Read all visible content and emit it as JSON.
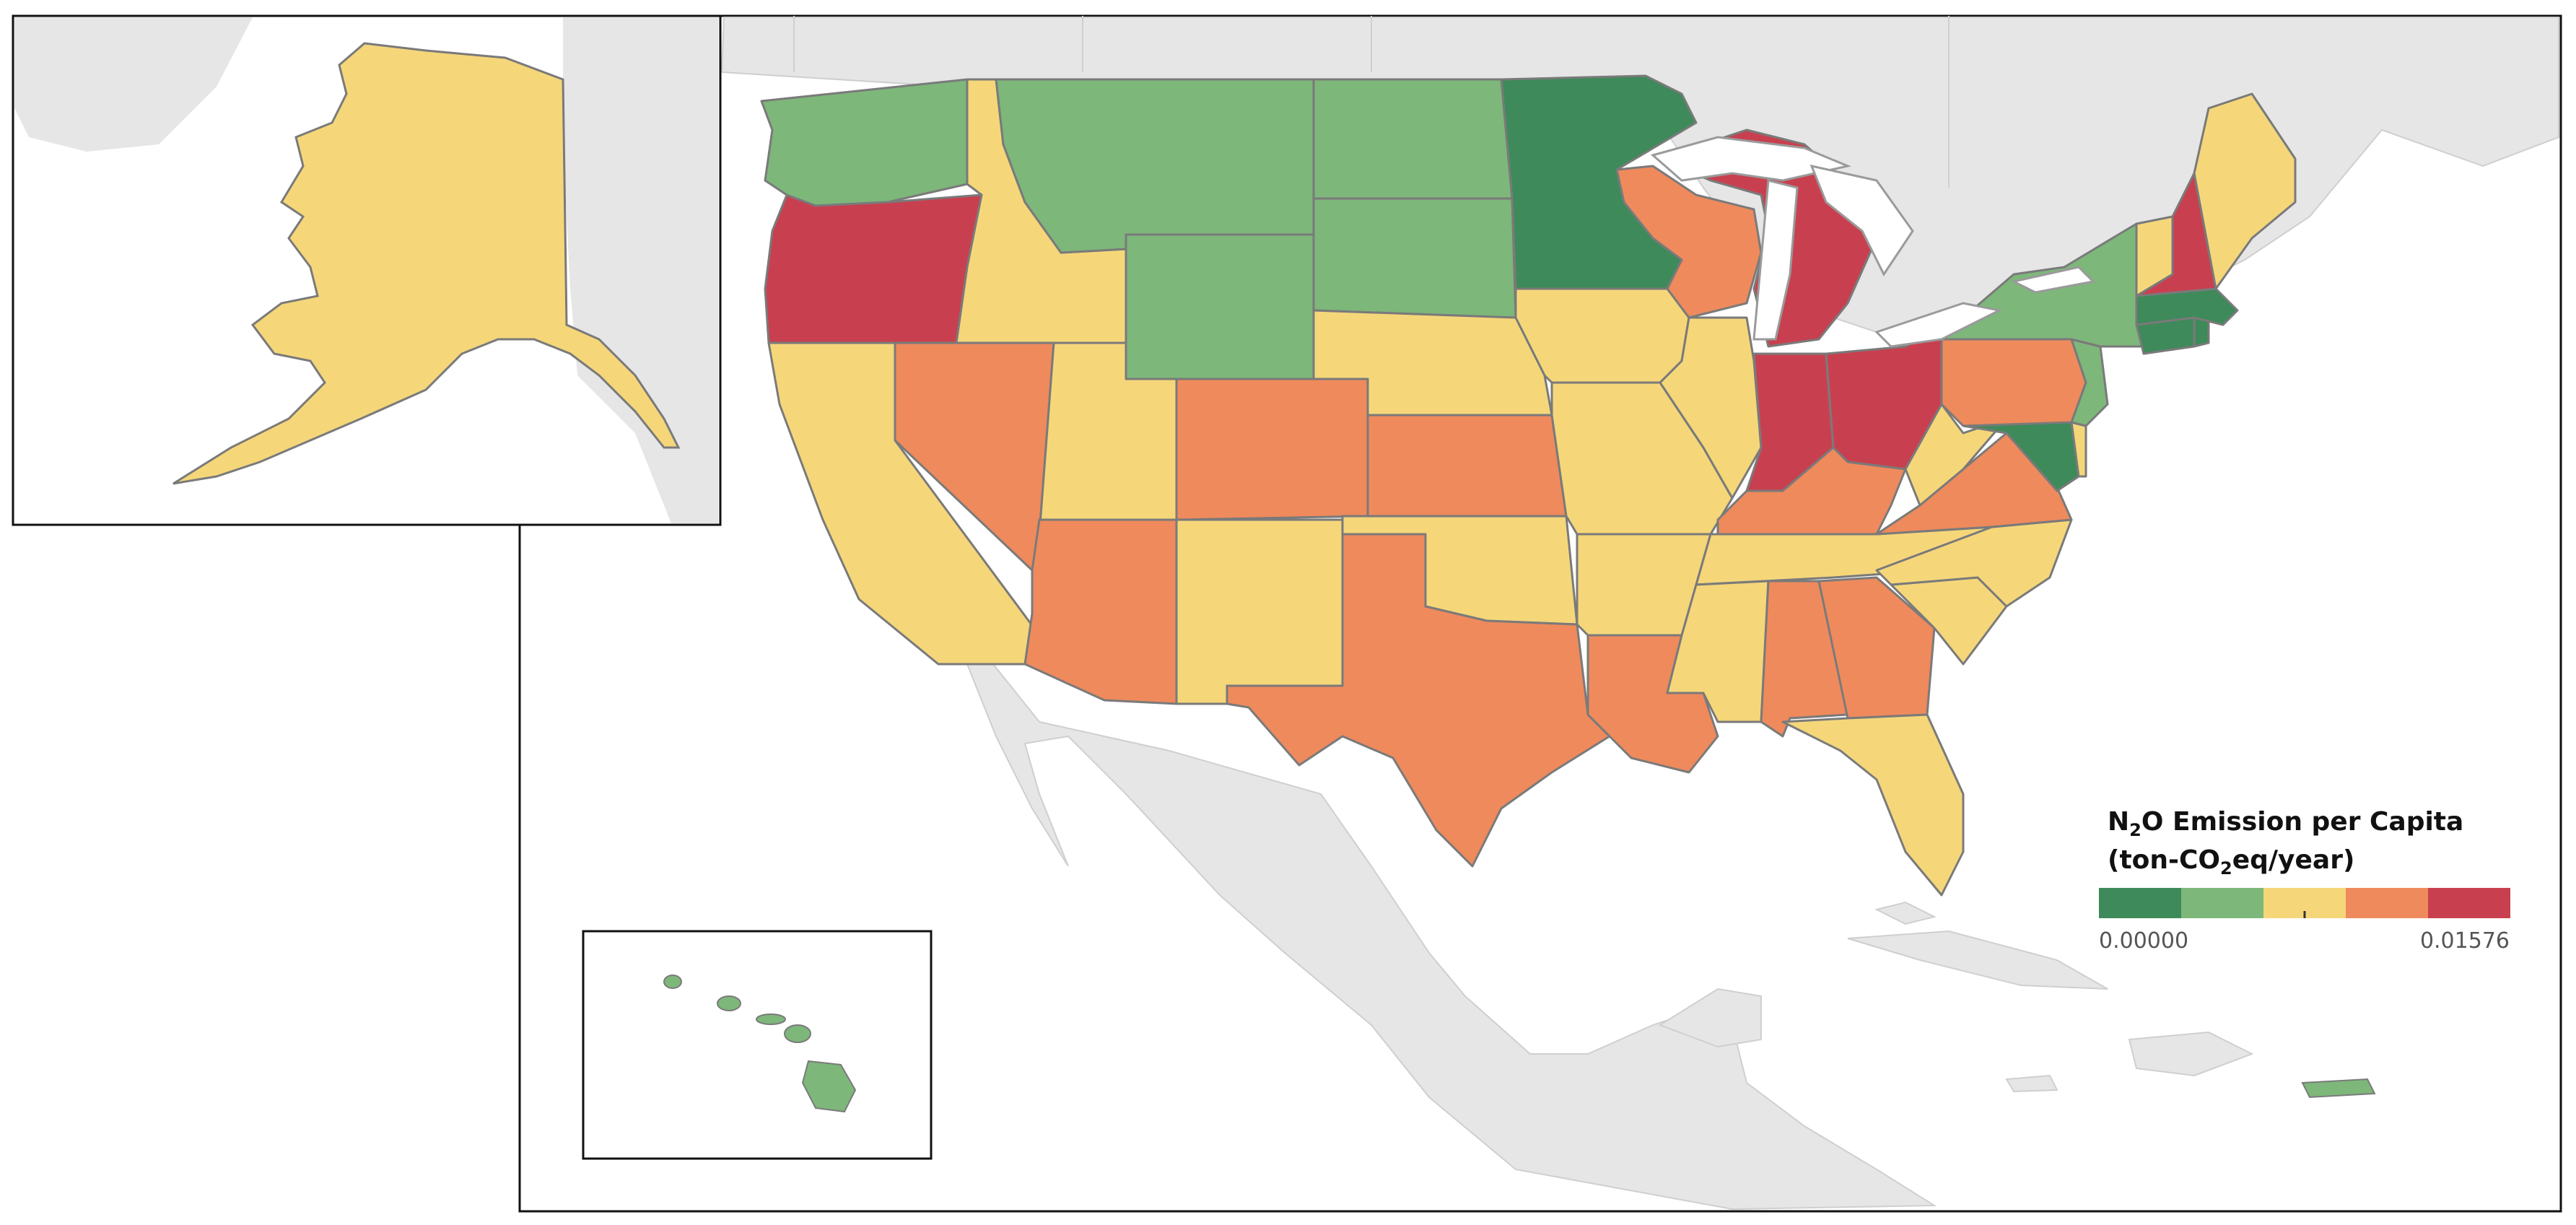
{
  "legend": {
    "title_prefix": "N",
    "title_sub": "2",
    "title_suffix": "O Emission per Capita",
    "units_prefix": "(ton-CO",
    "units_sub": "2",
    "units_suffix": "eq/year)",
    "min_label": "0.00000",
    "max_label": "0.01576",
    "min_value": 0.0,
    "max_value": 0.01576,
    "colors": [
      "#3e8a5a",
      "#7db77a",
      "#f5d77a",
      "#ef8a5c",
      "#c8404f"
    ]
  },
  "colors": {
    "background_land": "#e6e6e6",
    "water": "#ffffff",
    "border": "#7a7a7a",
    "frame": "#111111"
  },
  "states": [
    {
      "abbr": "WA",
      "name": "Washington",
      "bin": 1
    },
    {
      "abbr": "OR",
      "name": "Oregon",
      "bin": 4
    },
    {
      "abbr": "CA",
      "name": "California",
      "bin": 2
    },
    {
      "abbr": "NV",
      "name": "Nevada",
      "bin": 3
    },
    {
      "abbr": "ID",
      "name": "Idaho",
      "bin": 2
    },
    {
      "abbr": "MT",
      "name": "Montana",
      "bin": 1
    },
    {
      "abbr": "WY",
      "name": "Wyoming",
      "bin": 1
    },
    {
      "abbr": "UT",
      "name": "Utah",
      "bin": 2
    },
    {
      "abbr": "AZ",
      "name": "Arizona",
      "bin": 3
    },
    {
      "abbr": "CO",
      "name": "Colorado",
      "bin": 3
    },
    {
      "abbr": "NM",
      "name": "New Mexico",
      "bin": 2
    },
    {
      "abbr": "ND",
      "name": "North Dakota",
      "bin": 1
    },
    {
      "abbr": "SD",
      "name": "South Dakota",
      "bin": 1
    },
    {
      "abbr": "NE",
      "name": "Nebraska",
      "bin": 2
    },
    {
      "abbr": "KS",
      "name": "Kansas",
      "bin": 3
    },
    {
      "abbr": "OK",
      "name": "Oklahoma",
      "bin": 2
    },
    {
      "abbr": "TX",
      "name": "Texas",
      "bin": 3
    },
    {
      "abbr": "MN",
      "name": "Minnesota",
      "bin": 0
    },
    {
      "abbr": "IA",
      "name": "Iowa",
      "bin": 2
    },
    {
      "abbr": "MO",
      "name": "Missouri",
      "bin": 2
    },
    {
      "abbr": "AR",
      "name": "Arkansas",
      "bin": 2
    },
    {
      "abbr": "LA",
      "name": "Louisiana",
      "bin": 3
    },
    {
      "abbr": "WI",
      "name": "Wisconsin",
      "bin": 3
    },
    {
      "abbr": "IL",
      "name": "Illinois",
      "bin": 2
    },
    {
      "abbr": "MI",
      "name": "Michigan",
      "bin": 4
    },
    {
      "abbr": "IN",
      "name": "Indiana",
      "bin": 4
    },
    {
      "abbr": "OH",
      "name": "Ohio",
      "bin": 4
    },
    {
      "abbr": "KY",
      "name": "Kentucky",
      "bin": 3
    },
    {
      "abbr": "TN",
      "name": "Tennessee",
      "bin": 2
    },
    {
      "abbr": "MS",
      "name": "Mississippi",
      "bin": 2
    },
    {
      "abbr": "AL",
      "name": "Alabama",
      "bin": 3
    },
    {
      "abbr": "GA",
      "name": "Georgia",
      "bin": 3
    },
    {
      "abbr": "FL",
      "name": "Florida",
      "bin": 2
    },
    {
      "abbr": "SC",
      "name": "South Carolina",
      "bin": 2
    },
    {
      "abbr": "NC",
      "name": "North Carolina",
      "bin": 2
    },
    {
      "abbr": "VA",
      "name": "Virginia",
      "bin": 3
    },
    {
      "abbr": "WV",
      "name": "West Virginia",
      "bin": 2
    },
    {
      "abbr": "MD",
      "name": "Maryland",
      "bin": 0
    },
    {
      "abbr": "DE",
      "name": "Delaware",
      "bin": 2
    },
    {
      "abbr": "PA",
      "name": "Pennsylvania",
      "bin": 3
    },
    {
      "abbr": "NJ",
      "name": "New Jersey",
      "bin": 1
    },
    {
      "abbr": "NY",
      "name": "New York",
      "bin": 1
    },
    {
      "abbr": "CT",
      "name": "Connecticut",
      "bin": 0
    },
    {
      "abbr": "RI",
      "name": "Rhode Island",
      "bin": 0
    },
    {
      "abbr": "MA",
      "name": "Massachusetts",
      "bin": 0
    },
    {
      "abbr": "VT",
      "name": "Vermont",
      "bin": 2
    },
    {
      "abbr": "NH",
      "name": "New Hampshire",
      "bin": 4
    },
    {
      "abbr": "ME",
      "name": "Maine",
      "bin": 2
    },
    {
      "abbr": "AK",
      "name": "Alaska",
      "bin": 2
    },
    {
      "abbr": "HI",
      "name": "Hawaii",
      "bin": 1
    },
    {
      "abbr": "PR",
      "name": "Puerto Rico",
      "bin": 1
    }
  ]
}
